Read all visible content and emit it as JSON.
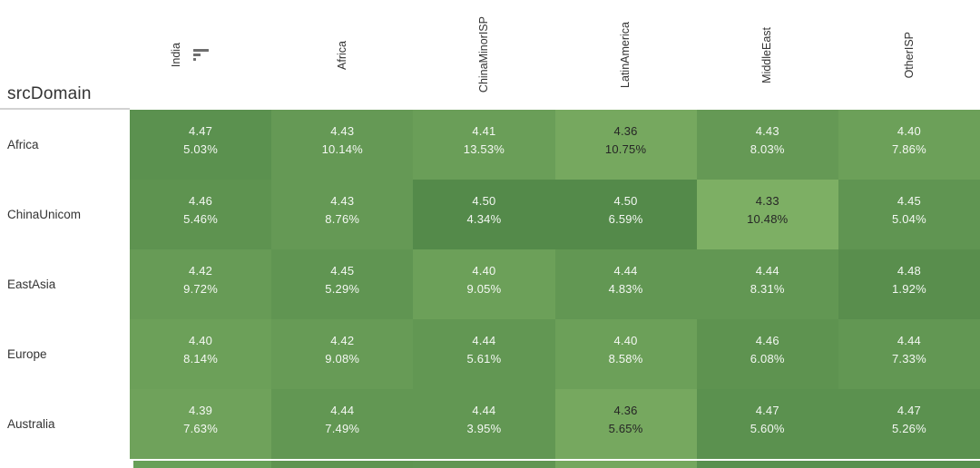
{
  "chart_data": {
    "type": "heatmap",
    "title": "",
    "corner_label": "srcDomain",
    "columns": [
      "India",
      "Africa",
      "ChinaMinorISP",
      "LatinAmerica",
      "MiddleEast",
      "OtherISP"
    ],
    "sorted_column": "India",
    "rows": [
      "Africa",
      "ChinaUnicom",
      "EastAsia",
      "Europe",
      "Australia"
    ],
    "cells": [
      [
        {
          "value": "4.47",
          "pct": "5.03%"
        },
        {
          "value": "4.43",
          "pct": "10.14%"
        },
        {
          "value": "4.41",
          "pct": "13.53%"
        },
        {
          "value": "4.36",
          "pct": "10.75%"
        },
        {
          "value": "4.43",
          "pct": "8.03%"
        },
        {
          "value": "4.40",
          "pct": "7.86%"
        }
      ],
      [
        {
          "value": "4.46",
          "pct": "5.46%"
        },
        {
          "value": "4.43",
          "pct": "8.76%"
        },
        {
          "value": "4.50",
          "pct": "4.34%"
        },
        {
          "value": "4.50",
          "pct": "6.59%"
        },
        {
          "value": "4.33",
          "pct": "10.48%"
        },
        {
          "value": "4.45",
          "pct": "5.04%"
        }
      ],
      [
        {
          "value": "4.42",
          "pct": "9.72%"
        },
        {
          "value": "4.45",
          "pct": "5.29%"
        },
        {
          "value": "4.40",
          "pct": "9.05%"
        },
        {
          "value": "4.44",
          "pct": "4.83%"
        },
        {
          "value": "4.44",
          "pct": "8.31%"
        },
        {
          "value": "4.48",
          "pct": "1.92%"
        }
      ],
      [
        {
          "value": "4.40",
          "pct": "8.14%"
        },
        {
          "value": "4.42",
          "pct": "9.08%"
        },
        {
          "value": "4.44",
          "pct": "5.61%"
        },
        {
          "value": "4.40",
          "pct": "8.58%"
        },
        {
          "value": "4.46",
          "pct": "6.08%"
        },
        {
          "value": "4.44",
          "pct": "7.33%"
        }
      ],
      [
        {
          "value": "4.39",
          "pct": "7.63%"
        },
        {
          "value": "4.44",
          "pct": "7.49%"
        },
        {
          "value": "4.44",
          "pct": "3.95%"
        },
        {
          "value": "4.36",
          "pct": "5.65%"
        },
        {
          "value": "4.47",
          "pct": "5.60%"
        },
        {
          "value": "4.47",
          "pct": "5.26%"
        }
      ]
    ],
    "color_scale": {
      "min": 4.33,
      "max": 4.5,
      "light": "#7DAF64",
      "dark": "#548A4A"
    },
    "text_colors": {
      "light_text": "rgba(255,255,255,0.93)",
      "dark_text": "#262626",
      "dark_text_max": 4.36
    },
    "cutoff_row_colors": [
      "#68A058",
      "#5F9450",
      "#609552",
      "#74A75E",
      "#58904E",
      "#58904E"
    ],
    "layout": {
      "legend": "none",
      "grid": "off",
      "header_underline_color": "#d2d2d2"
    }
  }
}
